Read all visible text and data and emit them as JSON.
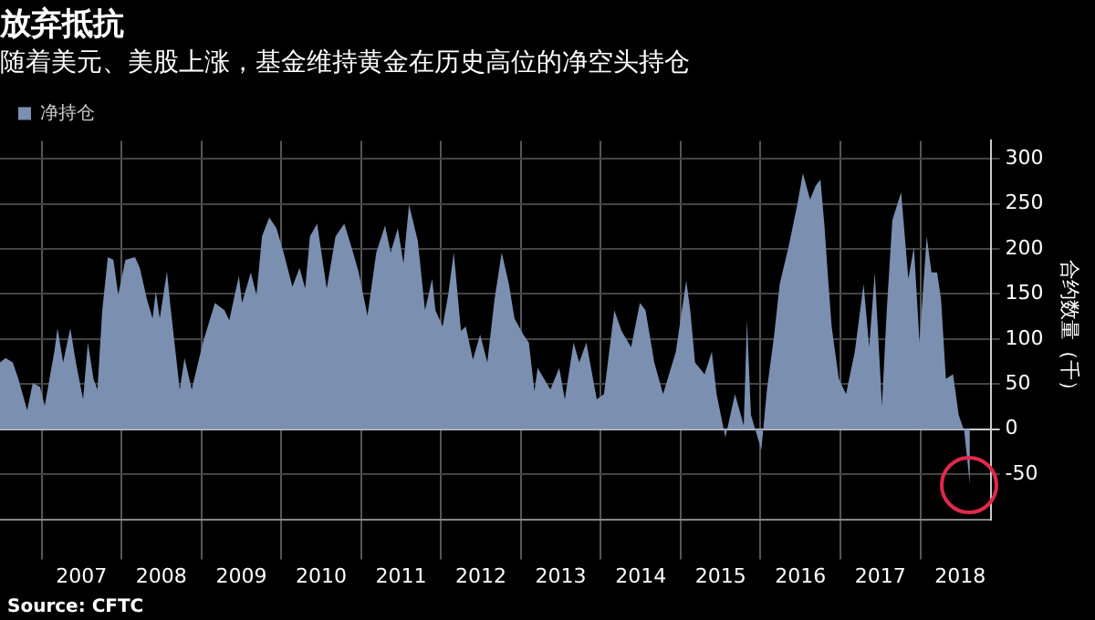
{
  "chart_data": {
    "type": "area",
    "title": "放弃抵抗",
    "subtitle": "随着美元、美股上涨，基金维持黄金在历史高位的净空头持仓",
    "ylabel": "合约数量（千）",
    "annotations": [
      "Source: CFTC"
    ],
    "x": [
      2006.48,
      2006.55,
      2006.64,
      2006.71,
      2006.82,
      2006.89,
      2006.98,
      2007.04,
      2007.16,
      2007.2,
      2007.27,
      2007.36,
      2007.43,
      2007.52,
      2007.58,
      2007.65,
      2007.7,
      2007.76,
      2007.83,
      2007.9,
      2007.96,
      2008.05,
      2008.17,
      2008.23,
      2008.32,
      2008.39,
      2008.43,
      2008.48,
      2008.57,
      2008.61,
      2008.73,
      2008.79,
      2008.88,
      2009.02,
      2009.17,
      2009.29,
      2009.35,
      2009.47,
      2009.51,
      2009.62,
      2009.69,
      2009.76,
      2009.85,
      2009.94,
      2010.03,
      2010.14,
      2010.23,
      2010.3,
      2010.36,
      2010.45,
      2010.57,
      2010.68,
      2010.79,
      2010.9,
      2010.97,
      2011.08,
      2011.19,
      2011.3,
      2011.37,
      2011.46,
      2011.53,
      2011.6,
      2011.71,
      2011.8,
      2011.89,
      2011.93,
      2012.02,
      2012.09,
      2012.16,
      2012.25,
      2012.31,
      2012.4,
      2012.49,
      2012.58,
      2012.67,
      2012.76,
      2012.85,
      2012.92,
      2013.03,
      2013.1,
      2013.17,
      2013.21,
      2013.37,
      2013.48,
      2013.55,
      2013.66,
      2013.73,
      2013.82,
      2013.95,
      2014.04,
      2014.17,
      2014.26,
      2014.38,
      2014.49,
      2014.56,
      2014.67,
      2014.78,
      2014.94,
      2015.07,
      2015.12,
      2015.18,
      2015.3,
      2015.39,
      2015.45,
      2015.56,
      2015.68,
      2015.79,
      2015.83,
      2015.88,
      2016.01,
      2016.08,
      2016.17,
      2016.24,
      2016.35,
      2016.46,
      2016.53,
      2016.62,
      2016.69,
      2016.75,
      2016.8,
      2016.84,
      2016.89,
      2016.98,
      2017.07,
      2017.18,
      2017.29,
      2017.36,
      2017.43,
      2017.52,
      2017.58,
      2017.65,
      2017.76,
      2017.85,
      2017.92,
      2017.99,
      2018.08,
      2018.14,
      2018.21,
      2018.26,
      2018.32,
      2018.41,
      2018.48,
      2018.55,
      2018.62
    ],
    "series": [
      {
        "name": "净持仓",
        "color": "#7b8fb0",
        "values": [
          74,
          79,
          74,
          56,
          21,
          51,
          47,
          26,
          86,
          112,
          74,
          112,
          74,
          33,
          96,
          56,
          44,
          132,
          191,
          188,
          149,
          188,
          191,
          179,
          144,
          123,
          153,
          123,
          175,
          139,
          44,
          79,
          44,
          96,
          140,
          132,
          121,
          170,
          140,
          174,
          149,
          214,
          235,
          223,
          196,
          158,
          179,
          156,
          214,
          228,
          156,
          214,
          228,
          196,
          174,
          126,
          196,
          226,
          196,
          223,
          184,
          249,
          209,
          132,
          167,
          132,
          114,
          149,
          196,
          109,
          114,
          77,
          105,
          74,
          144,
          196,
          161,
          123,
          105,
          96,
          42,
          68,
          44,
          68,
          33,
          96,
          74,
          96,
          33,
          39,
          132,
          109,
          91,
          140,
          132,
          74,
          39,
          86,
          165,
          132,
          74,
          61,
          86,
          39,
          -9,
          39,
          4,
          121,
          16,
          -23,
          44,
          104,
          161,
          202,
          249,
          284,
          255,
          270,
          277,
          226,
          174,
          114,
          56,
          39,
          86,
          161,
          91,
          174,
          26,
          132,
          232,
          263,
          167,
          202,
          96,
          214,
          174,
          174,
          144,
          56,
          61,
          16,
          -2,
          -61
        ]
      }
    ],
    "xlim": [
      2006.48,
      2018.88
    ],
    "xticks": [
      {
        "value": 2007,
        "label": null
      },
      {
        "value": 2007.5,
        "label": "2007"
      },
      {
        "value": 2008,
        "label": null
      },
      {
        "value": 2008.5,
        "label": "2008"
      },
      {
        "value": 2009,
        "label": null
      },
      {
        "value": 2009.5,
        "label": "2009"
      },
      {
        "value": 2010,
        "label": null
      },
      {
        "value": 2010.5,
        "label": "2010"
      },
      {
        "value": 2011,
        "label": null
      },
      {
        "value": 2011.5,
        "label": "2011"
      },
      {
        "value": 2012,
        "label": null
      },
      {
        "value": 2012.5,
        "label": "2012"
      },
      {
        "value": 2013,
        "label": null
      },
      {
        "value": 2013.5,
        "label": "2013"
      },
      {
        "value": 2014,
        "label": null
      },
      {
        "value": 2014.5,
        "label": "2014"
      },
      {
        "value": 2015,
        "label": null
      },
      {
        "value": 2015.5,
        "label": "2015"
      },
      {
        "value": 2016,
        "label": null
      },
      {
        "value": 2016.5,
        "label": "2016"
      },
      {
        "value": 2017,
        "label": null
      },
      {
        "value": 2017.5,
        "label": "2017"
      },
      {
        "value": 2018,
        "label": null
      },
      {
        "value": 2018.5,
        "label": "2018"
      }
    ],
    "ylim": [
      -100,
      320
    ],
    "yticks": [
      -50,
      0,
      50,
      100,
      150,
      200,
      250,
      300
    ],
    "grid": true,
    "legend": "top left"
  }
}
